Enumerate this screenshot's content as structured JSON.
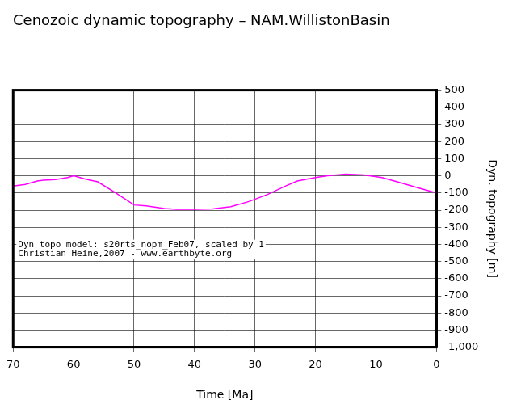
{
  "chart_data": {
    "type": "line",
    "title": "Cenozoic dynamic topography – NAM.WillistonBasin",
    "x_label": "Time [Ma]",
    "y_label": "Dyn. topography [m]",
    "annotations": [
      "Dyn topo model: s20rts_nopm_Feb07, scaled by 1",
      "Christian Heine,2007 - www.earthbyte.org"
    ],
    "x": [
      70,
      68,
      66,
      65,
      63,
      61,
      60,
      58,
      56,
      53,
      50,
      48,
      45,
      43,
      40,
      37,
      34,
      31,
      28,
      25,
      23,
      20,
      18,
      15,
      12,
      9,
      6,
      3,
      0
    ],
    "values": [
      -60,
      -50,
      -30,
      -25,
      -22,
      -10,
      0,
      -20,
      -35,
      -100,
      -170,
      -175,
      -190,
      -195,
      -195,
      -193,
      -180,
      -150,
      -110,
      -60,
      -30,
      -10,
      0,
      10,
      5,
      -10,
      -40,
      -70,
      -100
    ],
    "color": "#ff00ff",
    "xlim": [
      70,
      0
    ],
    "xticks": [
      70,
      60,
      50,
      40,
      30,
      20,
      10,
      0
    ],
    "ylim": [
      -1000,
      500
    ],
    "yticks": [
      -1000,
      -900,
      -800,
      -700,
      -600,
      -500,
      -400,
      -300,
      -200,
      -100,
      0,
      100,
      200,
      300,
      400,
      500
    ],
    "grid": true
  }
}
